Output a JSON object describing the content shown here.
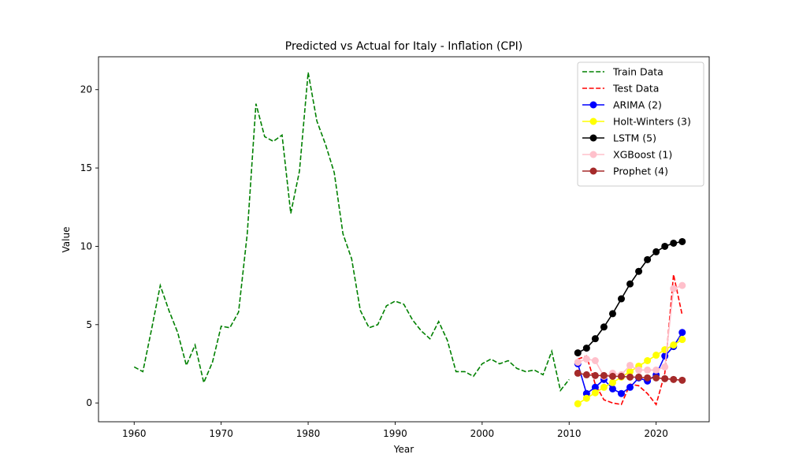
{
  "chart_data": {
    "type": "line",
    "title": "Predicted vs Actual for Italy - Inflation (CPI)",
    "xlabel": "Year",
    "ylabel": "Value",
    "xlim": [
      1955.9,
      2026.1
    ],
    "ylim": [
      -1.2,
      22.1
    ],
    "xticks": [
      1960,
      1970,
      1980,
      1990,
      2000,
      2010,
      2020
    ],
    "yticks": [
      0,
      5,
      10,
      15,
      20
    ],
    "grid": false,
    "legend_position": "top-right",
    "series": [
      {
        "name": "Train Data",
        "color": "#008000",
        "style": "dashed",
        "marker": false,
        "x": [
          1960,
          1961,
          1962,
          1963,
          1964,
          1965,
          1966,
          1967,
          1968,
          1969,
          1970,
          1971,
          1972,
          1973,
          1974,
          1975,
          1976,
          1977,
          1978,
          1979,
          1980,
          1981,
          1982,
          1983,
          1984,
          1985,
          1986,
          1987,
          1988,
          1989,
          1990,
          1991,
          1992,
          1993,
          1994,
          1995,
          1996,
          1997,
          1998,
          1999,
          2000,
          2001,
          2002,
          2003,
          2004,
          2005,
          2006,
          2007,
          2008,
          2009,
          2010
        ],
        "y": [
          2.3,
          2.0,
          4.7,
          7.5,
          5.9,
          4.5,
          2.4,
          3.7,
          1.3,
          2.6,
          4.9,
          4.8,
          5.8,
          10.8,
          19.1,
          17.0,
          16.7,
          17.1,
          12.1,
          14.8,
          21.1,
          18.0,
          16.5,
          14.7,
          10.8,
          9.2,
          5.9,
          4.8,
          5.0,
          6.2,
          6.5,
          6.3,
          5.3,
          4.6,
          4.1,
          5.2,
          4.0,
          2.0,
          2.0,
          1.7,
          2.5,
          2.8,
          2.5,
          2.7,
          2.2,
          2.0,
          2.1,
          1.8,
          3.3,
          0.8,
          1.5
        ]
      },
      {
        "name": "Test Data",
        "color": "#ff0000",
        "style": "dashed",
        "marker": false,
        "x": [
          2011,
          2012,
          2013,
          2014,
          2015,
          2016,
          2017,
          2018,
          2019,
          2020,
          2021,
          2022,
          2023
        ],
        "y": [
          2.8,
          3.0,
          1.2,
          0.2,
          0.0,
          -0.1,
          1.2,
          1.1,
          0.6,
          -0.1,
          1.9,
          8.2,
          5.6
        ]
      },
      {
        "name": "ARIMA (2)",
        "color": "#0000ff",
        "style": "solid",
        "marker": true,
        "x": [
          2011,
          2012,
          2013,
          2014,
          2015,
          2016,
          2017,
          2018,
          2019,
          2020,
          2021,
          2022,
          2023
        ],
        "y": [
          2.5,
          0.6,
          1.0,
          1.5,
          0.9,
          0.6,
          1.0,
          1.6,
          1.4,
          1.8,
          3.0,
          3.6,
          4.5
        ]
      },
      {
        "name": "Holt-Winters (3)",
        "color": "#ffff00",
        "style": "solid",
        "marker": true,
        "x": [
          2011,
          2012,
          2013,
          2014,
          2015,
          2016,
          2017,
          2018,
          2019,
          2020,
          2021,
          2022,
          2023
        ],
        "y": [
          -0.05,
          0.3,
          0.65,
          1.0,
          1.3,
          1.65,
          2.0,
          2.35,
          2.7,
          3.05,
          3.4,
          3.7,
          4.05
        ]
      },
      {
        "name": "LSTM (5)",
        "color": "#000000",
        "style": "solid",
        "marker": true,
        "x": [
          2011,
          2012,
          2013,
          2014,
          2015,
          2016,
          2017,
          2018,
          2019,
          2020,
          2021,
          2022,
          2023
        ],
        "y": [
          3.2,
          3.5,
          4.1,
          4.85,
          5.7,
          6.65,
          7.6,
          8.4,
          9.15,
          9.65,
          10.0,
          10.2,
          10.3
        ]
      },
      {
        "name": "XGBoost (1)",
        "color": "#ffc0cb",
        "style": "solid",
        "marker": true,
        "x": [
          2011,
          2012,
          2013,
          2014,
          2015,
          2016,
          2017,
          2018,
          2019,
          2020,
          2021,
          2022,
          2023
        ],
        "y": [
          2.6,
          2.8,
          2.7,
          1.7,
          1.9,
          1.8,
          2.4,
          2.1,
          2.1,
          2.1,
          2.3,
          7.3,
          7.5
        ]
      },
      {
        "name": "Prophet (4)",
        "color": "#a52a2a",
        "style": "solid",
        "marker": true,
        "x": [
          2011,
          2012,
          2013,
          2014,
          2015,
          2016,
          2017,
          2018,
          2019,
          2020,
          2021,
          2022,
          2023
        ],
        "y": [
          1.9,
          1.8,
          1.75,
          1.75,
          1.7,
          1.7,
          1.65,
          1.65,
          1.6,
          1.6,
          1.55,
          1.5,
          1.45
        ]
      }
    ]
  }
}
